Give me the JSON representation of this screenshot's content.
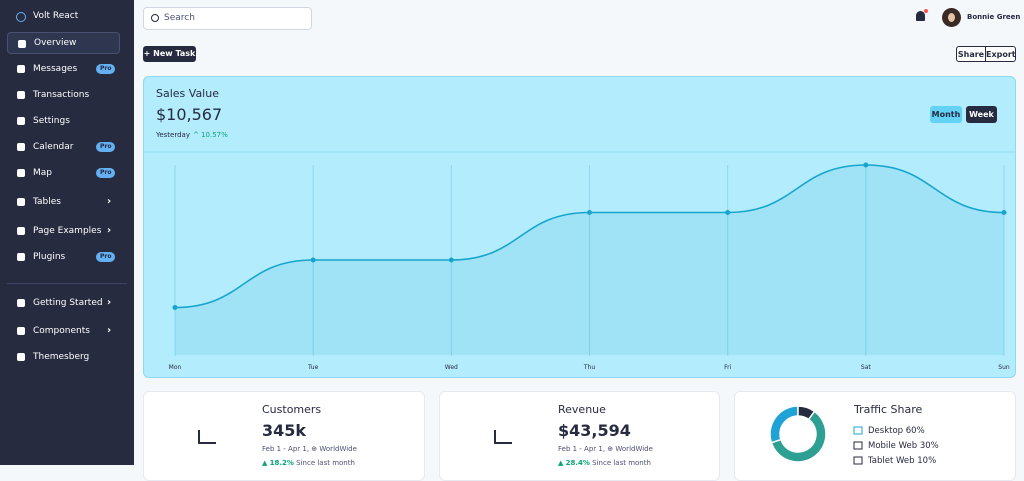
{
  "sidebar": {
    "brand": "Volt React",
    "items": [
      {
        "label": "Overview",
        "active": true
      },
      {
        "label": "Messages",
        "badge": "Pro"
      },
      {
        "label": "Transactions"
      },
      {
        "label": "Settings"
      },
      {
        "label": "Calendar",
        "badge": "Pro"
      },
      {
        "label": "Map",
        "badge": "Pro"
      },
      {
        "label": "Tables",
        "expandable": true
      },
      {
        "label": "Page Examples",
        "expandable": true
      },
      {
        "label": "Plugins",
        "badge": "Pro"
      }
    ],
    "extra_items": [
      {
        "label": "Getting Started",
        "expandable": true
      },
      {
        "label": "Components",
        "expandable": true
      },
      {
        "label": "Themesberg"
      }
    ]
  },
  "topbar": {
    "search_placeholder": "Search",
    "user_name": "Bonnie Green"
  },
  "actions": {
    "new_task": "New Task",
    "share": "Share",
    "export": "Export"
  },
  "sales_card": {
    "title": "Sales Value",
    "value": "$10,567",
    "period": "Yesterday",
    "change": "10.57%",
    "toggles": [
      "Month",
      "Week"
    ]
  },
  "stats": [
    {
      "title": "Customers",
      "value": "345k",
      "range": "Feb 1 - Apr 1,",
      "region": "WorldWide",
      "change": "18.2%",
      "change_note": "Since last month"
    },
    {
      "title": "Revenue",
      "value": "$43,594",
      "range": "Feb 1 - Apr 1,",
      "region": "WorldWide",
      "change": "28.4%",
      "change_note": "Since last month"
    }
  ],
  "chart_data": [
    {
      "type": "line",
      "categories": [
        "Mon",
        "Tue",
        "Wed",
        "Thu",
        "Fri",
        "Sat",
        "Sun"
      ],
      "values": [
        1,
        2,
        2,
        3,
        3,
        4,
        3
      ],
      "color": "#17a5ce",
      "ylim": [
        0,
        4
      ]
    },
    {
      "type": "pie",
      "title": "Traffic Share",
      "categories": [
        "Desktop",
        "Mobile Web",
        "Tablet Web"
      ],
      "values": [
        60,
        30,
        10
      ],
      "value_labels": [
        "60%",
        "30%",
        "10%"
      ],
      "colors": [
        "#2e9f93",
        "#1fa2d6",
        "#262b40"
      ]
    }
  ]
}
